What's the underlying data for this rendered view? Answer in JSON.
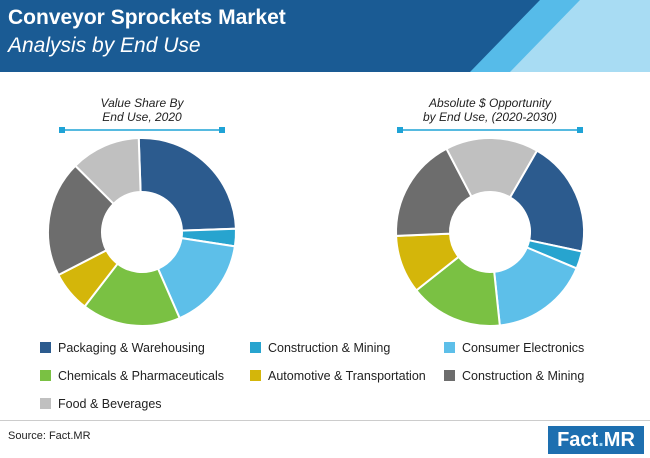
{
  "header": {
    "title": "Conveyor Sprockets Market",
    "subtitle": "Analysis by End Use"
  },
  "colors": {
    "header_bg": "#1a5b94",
    "accent_light": "#a8dcf3",
    "accent_mid": "#56bbe9",
    "marker": "#1fa3d6"
  },
  "legend": [
    {
      "label": "Packaging & Warehousing",
      "color": "#2c5b8e"
    },
    {
      "label": "Construction & Mining",
      "color": "#27a4cf"
    },
    {
      "label": "Consumer Electronics",
      "color": "#5dbfe9"
    },
    {
      "label": "Chemicals & Pharmaceuticals",
      "color": "#7ac143"
    },
    {
      "label": "Automotive & Transportation",
      "color": "#d4b60a"
    },
    {
      "label": "Construction & Mining",
      "color": "#6d6d6d"
    },
    {
      "label": "Food & Beverages",
      "color": "#c0c0c0"
    }
  ],
  "chart_data": [
    {
      "type": "pie",
      "title": "Value Share By End Use, 2020",
      "title_lines": [
        "Value Share By",
        "End Use, 2020"
      ],
      "categories": [
        "Packaging & Warehousing",
        "Construction & Mining",
        "Consumer Electronics",
        "Chemicals & Pharmaceuticals",
        "Automotive & Transportation",
        "Construction & Mining",
        "Food & Beverages"
      ],
      "values": [
        25,
        3,
        16,
        17,
        7,
        20,
        12
      ],
      "colors": [
        "#2c5b8e",
        "#27a4cf",
        "#5dbfe9",
        "#7ac143",
        "#d4b60a",
        "#6d6d6d",
        "#c0c0c0"
      ],
      "start_angle_deg": 92
    },
    {
      "type": "pie",
      "title": "Absolute $ Opportunity by End Use, (2020-2030)",
      "title_lines": [
        "Absolute $ Opportunity",
        "by End Use, (2020-2030)"
      ],
      "categories": [
        "Packaging & Warehousing",
        "Construction & Mining",
        "Consumer Electronics",
        "Chemicals & Pharmaceuticals",
        "Automotive & Transportation",
        "Construction & Mining",
        "Food & Beverages"
      ],
      "values": [
        20,
        3,
        17,
        16,
        10,
        18,
        16
      ],
      "colors": [
        "#2c5b8e",
        "#27a4cf",
        "#5dbfe9",
        "#7ac143",
        "#d4b60a",
        "#6d6d6d",
        "#c0c0c0"
      ],
      "start_angle_deg": 60
    }
  ],
  "footer": {
    "source": "Source: Fact.MR",
    "logo_left": "Fact",
    "logo_dot": ".",
    "logo_right": "MR"
  }
}
